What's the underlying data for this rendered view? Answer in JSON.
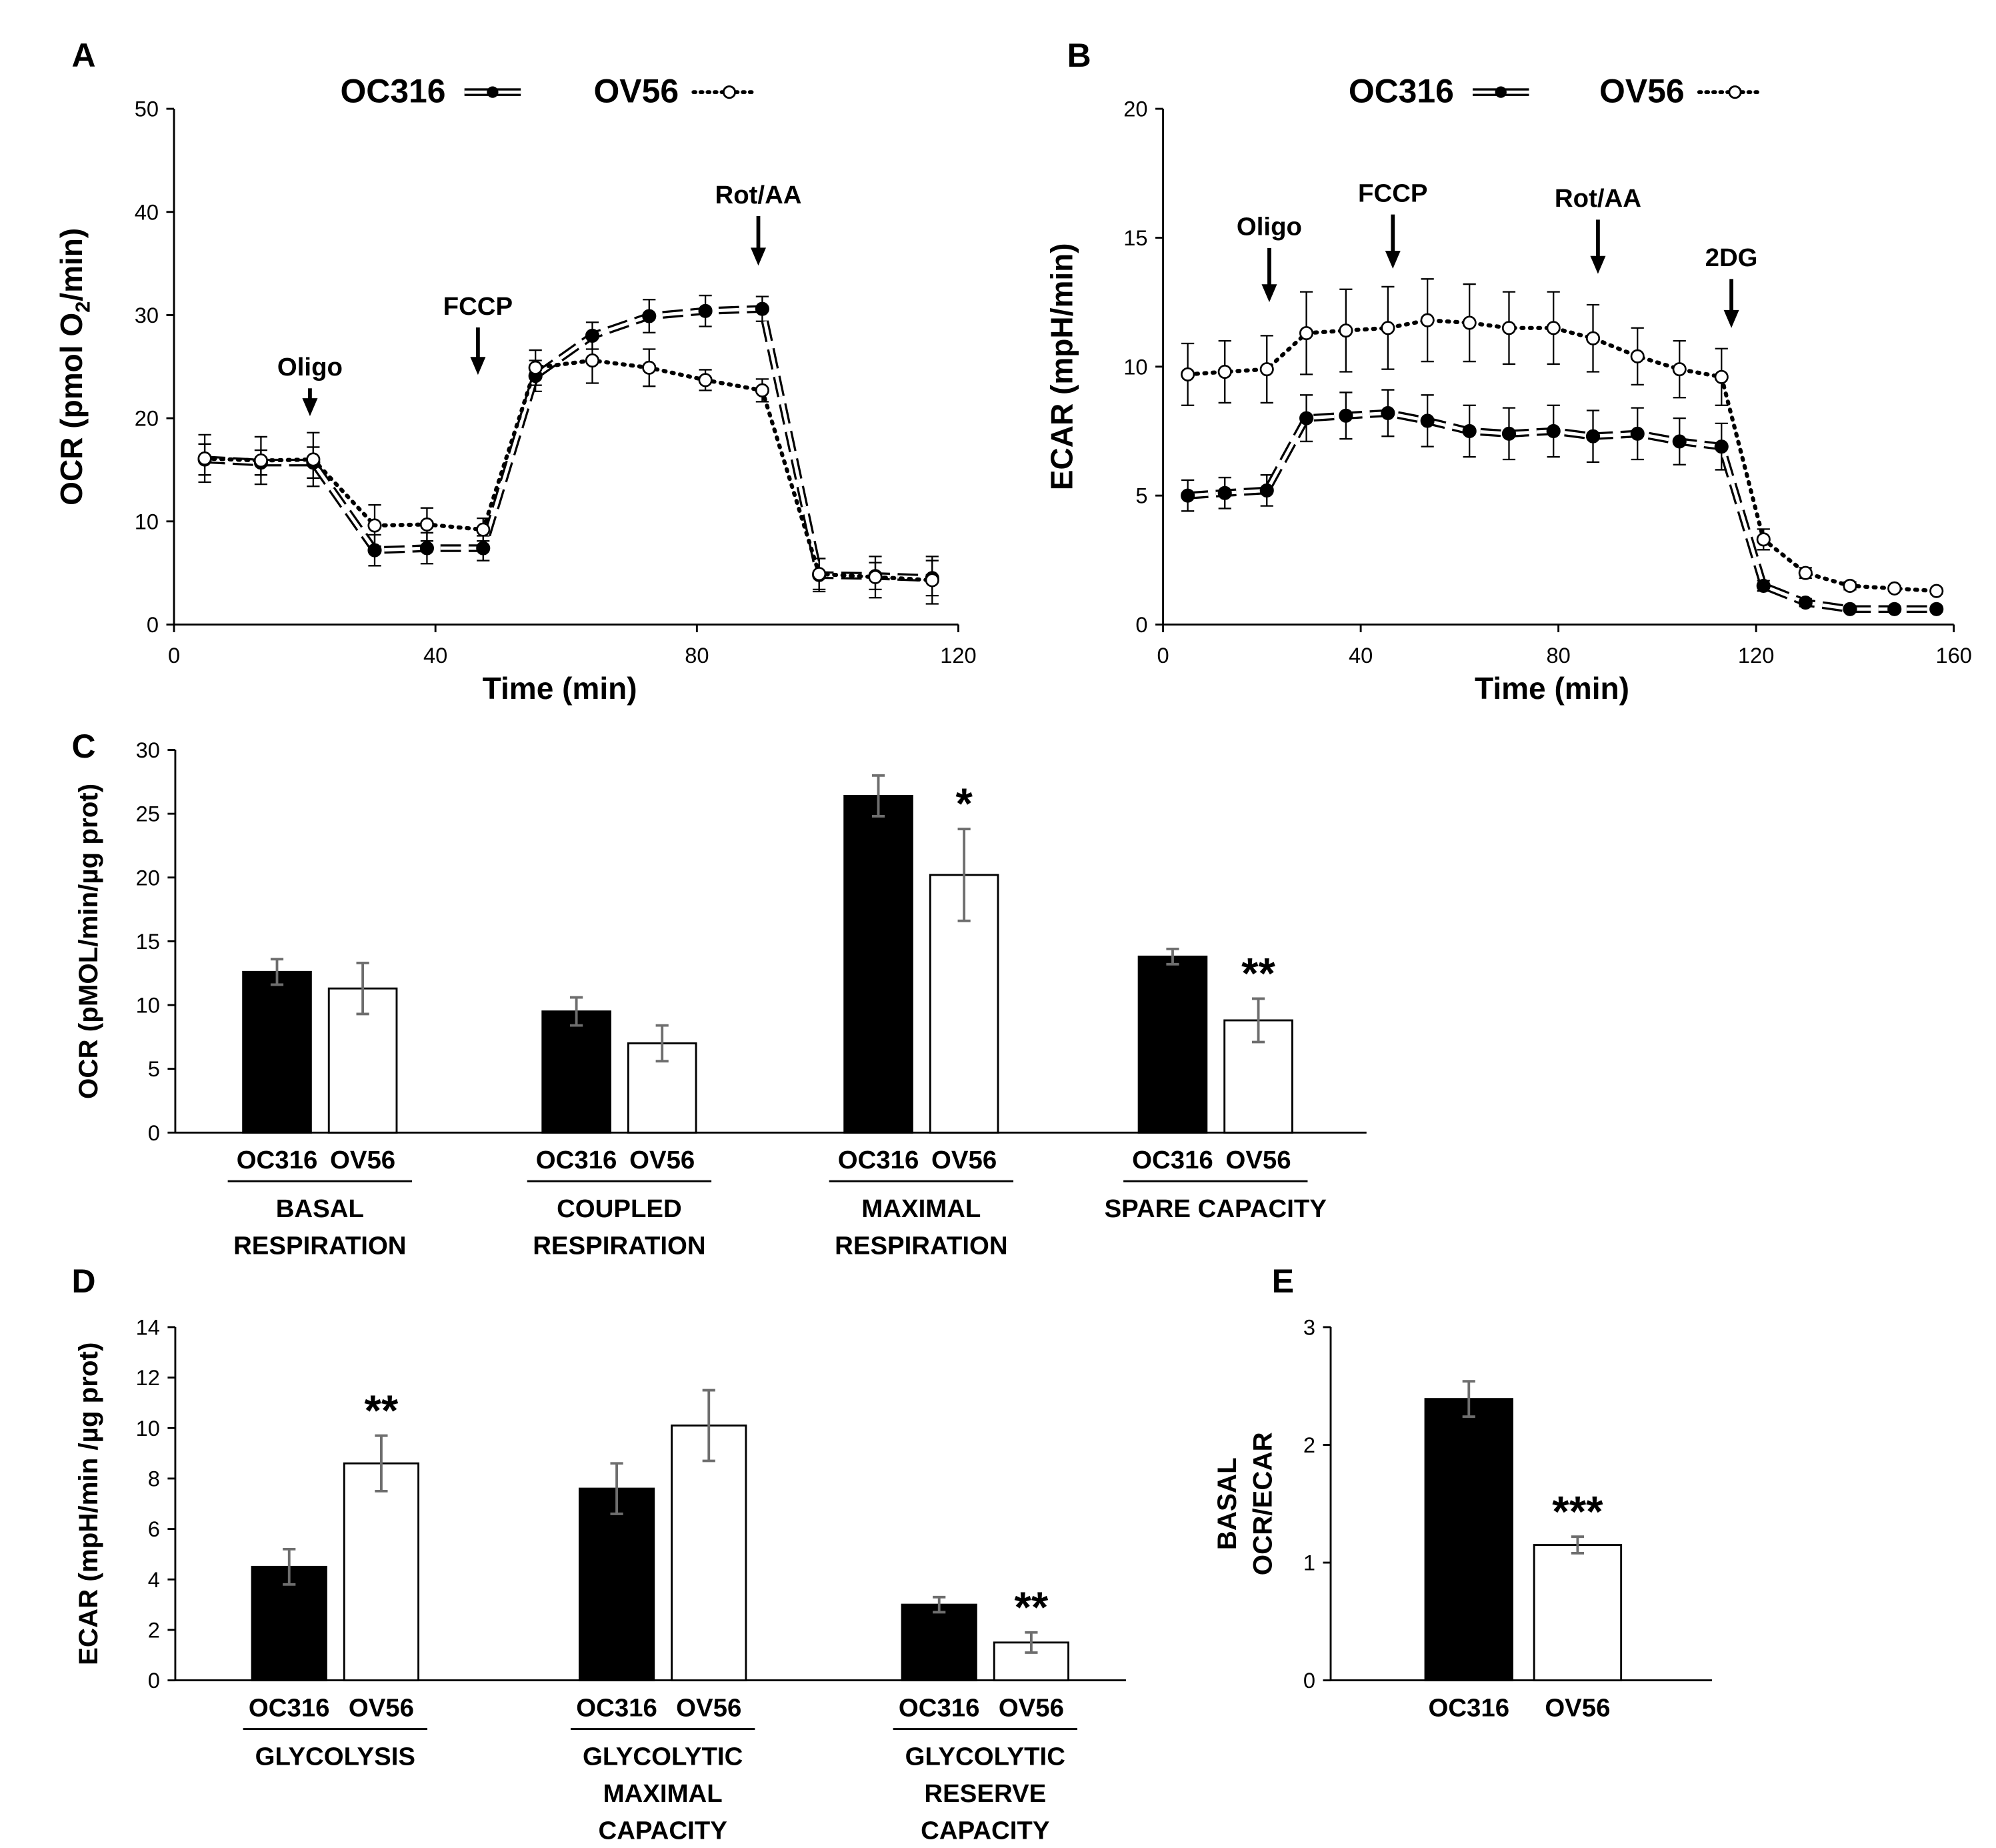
{
  "colors": {
    "ink": "#000000",
    "paper": "#ffffff",
    "errbar": "#6e6e6e"
  },
  "chart_data": [
    {
      "id": "A",
      "type": "line",
      "panel_label": "A",
      "legend": [
        "OC316",
        "OV56"
      ],
      "xlabel": "Time (min)",
      "ylabel_main": "OCR  (pmol O",
      "ylabel_sub": "2",
      "ylabel_end": "/min)",
      "xlim": [
        0,
        120
      ],
      "ylim": [
        0,
        50
      ],
      "xticks": [
        0,
        40,
        80,
        120
      ],
      "xtick_labels": [
        "0",
        "40",
        "80",
        "120"
      ],
      "yticks": [
        0,
        10,
        20,
        30,
        40,
        50
      ],
      "ytick_labels": [
        "0",
        "10",
        "20",
        "30",
        "40",
        "50"
      ],
      "series": [
        {
          "name": "OC316",
          "style": "dashed-filled",
          "x": [
            4.7,
            13.3,
            21.3,
            30.7,
            38.7,
            47.3,
            55.3,
            64.0,
            72.7,
            81.3,
            90.0,
            98.7,
            107.3,
            116.0
          ],
          "y": [
            16.0,
            15.7,
            15.7,
            7.2,
            7.4,
            7.4,
            24.1,
            28.0,
            29.9,
            30.4,
            30.6,
            4.8,
            4.7,
            4.5
          ],
          "err": [
            1.5,
            1.2,
            1.5,
            1.5,
            1.5,
            1.2,
            1.5,
            1.3,
            1.6,
            1.5,
            1.2,
            1.6,
            1.3,
            1.7
          ]
        },
        {
          "name": "OV56",
          "style": "dotted-open",
          "x": [
            4.7,
            13.3,
            21.3,
            30.7,
            38.7,
            47.3,
            55.3,
            64.0,
            72.7,
            81.3,
            90.0,
            98.7,
            107.3,
            116.0
          ],
          "y": [
            16.1,
            15.9,
            16.0,
            9.6,
            9.7,
            9.2,
            24.9,
            25.6,
            24.9,
            23.7,
            22.7,
            4.9,
            4.6,
            4.3
          ],
          "err": [
            2.3,
            2.3,
            2.6,
            2.0,
            1.6,
            1.1,
            1.7,
            2.2,
            1.8,
            1.0,
            1.1,
            1.5,
            2.0,
            2.3
          ]
        }
      ],
      "annotations": [
        {
          "label": "Oligo",
          "x": 20.8,
          "y_top": 22.9,
          "y_bottom": 20.2
        },
        {
          "label": "FCCP",
          "x": 46.5,
          "y_top": 28.8,
          "y_bottom": 24.2
        },
        {
          "label": "Rot/AA",
          "x": 89.4,
          "y_top": 39.6,
          "y_bottom": 34.8
        }
      ]
    },
    {
      "id": "B",
      "type": "line",
      "panel_label": "B",
      "legend": [
        "OC316",
        "OV56"
      ],
      "xlabel": "Time (min)",
      "ylabel": "ECAR (mpH/min)",
      "xlim": [
        0,
        160
      ],
      "ylim": [
        0,
        20
      ],
      "xticks": [
        0,
        40,
        80,
        120,
        160
      ],
      "xtick_labels": [
        "0",
        "40",
        "80",
        "120",
        "160"
      ],
      "yticks": [
        0,
        5,
        10,
        15,
        20
      ],
      "ytick_labels": [
        "0",
        "5",
        "10",
        "15",
        "20"
      ],
      "series": [
        {
          "name": "OC316",
          "style": "dashed-filled",
          "x": [
            5.0,
            12.5,
            21.0,
            29.0,
            37.0,
            45.5,
            53.5,
            62.0,
            70.0,
            79.0,
            87.0,
            96.0,
            104.5,
            113.0,
            121.5,
            130.0,
            139.0,
            148.0,
            156.5
          ],
          "y": [
            5.0,
            5.1,
            5.2,
            8.0,
            8.1,
            8.2,
            7.9,
            7.5,
            7.4,
            7.5,
            7.3,
            7.4,
            7.1,
            6.9,
            1.5,
            0.85,
            0.6,
            0.6,
            0.6
          ],
          "err": [
            0.6,
            0.6,
            0.6,
            0.9,
            0.9,
            0.9,
            1.0,
            1.0,
            1.0,
            1.0,
            1.0,
            1.0,
            0.9,
            0.9,
            0.2,
            0.15,
            0.1,
            0.1,
            0.1
          ]
        },
        {
          "name": "OV56",
          "style": "dotted-open",
          "x": [
            5.0,
            12.5,
            21.0,
            29.0,
            37.0,
            45.5,
            53.5,
            62.0,
            70.0,
            79.0,
            87.0,
            96.0,
            104.5,
            113.0,
            121.5,
            130.0,
            139.0,
            148.0,
            156.5
          ],
          "y": [
            9.7,
            9.8,
            9.9,
            11.3,
            11.4,
            11.5,
            11.8,
            11.7,
            11.5,
            11.5,
            11.1,
            10.4,
            9.9,
            9.6,
            3.3,
            2.0,
            1.5,
            1.4,
            1.3
          ],
          "err": [
            1.2,
            1.2,
            1.3,
            1.6,
            1.6,
            1.6,
            1.6,
            1.5,
            1.4,
            1.4,
            1.3,
            1.1,
            1.1,
            1.1,
            0.4,
            0.2,
            0.15,
            0.1,
            0.1
          ]
        }
      ],
      "annotations": [
        {
          "label": "Oligo",
          "x": 21.5,
          "y_top": 14.6,
          "y_bottom": 12.5
        },
        {
          "label": "FCCP",
          "x": 46.5,
          "y_top": 15.9,
          "y_bottom": 13.8
        },
        {
          "label": "Rot/AA",
          "x": 88.0,
          "y_top": 15.7,
          "y_bottom": 13.6
        },
        {
          "label": "2DG",
          "x": 115.0,
          "y_top": 13.4,
          "y_bottom": 11.5
        }
      ]
    },
    {
      "id": "C",
      "type": "bar",
      "panel_label": "C",
      "ylabel": "OCR (pMOL/min/µg prot)",
      "ylim": [
        0,
        30
      ],
      "yticks": [
        0,
        5,
        10,
        15,
        20,
        25,
        30
      ],
      "ytick_labels": [
        "0",
        "5",
        "10",
        "15",
        "20",
        "25",
        "30"
      ],
      "groups": [
        {
          "label_lines": [
            "BASAL",
            "RESPIRATION"
          ],
          "bar_labels": [
            "OC316",
            "OV56"
          ],
          "values": [
            12.6,
            11.3
          ],
          "err": [
            1.0,
            2.0
          ],
          "sig": ""
        },
        {
          "label_lines": [
            "COUPLED",
            "RESPIRATION"
          ],
          "bar_labels": [
            "OC316",
            "OV56"
          ],
          "values": [
            9.5,
            7.0
          ],
          "err": [
            1.1,
            1.4
          ],
          "sig": ""
        },
        {
          "label_lines": [
            "MAXIMAL",
            "RESPIRATION"
          ],
          "bar_labels": [
            "OC316",
            "OV56"
          ],
          "values": [
            26.4,
            20.2
          ],
          "err": [
            1.6,
            3.6
          ],
          "sig": "*"
        },
        {
          "label_lines": [
            "SPARE CAPACITY"
          ],
          "bar_labels": [
            "OC316",
            "OV56"
          ],
          "values": [
            13.8,
            8.8
          ],
          "err": [
            0.6,
            1.7
          ],
          "sig": "**"
        }
      ]
    },
    {
      "id": "D",
      "type": "bar",
      "panel_label": "D",
      "ylabel": "ECAR (mpH/min /µg prot)",
      "ylim": [
        0,
        14
      ],
      "yticks": [
        0,
        2,
        4,
        6,
        8,
        10,
        12,
        14
      ],
      "ytick_labels": [
        "0",
        "2",
        "4",
        "6",
        "8",
        "10",
        "12",
        "14"
      ],
      "groups": [
        {
          "label_lines": [
            "GLYCOLYSIS"
          ],
          "bar_labels": [
            "OC316",
            "OV56"
          ],
          "values": [
            4.5,
            8.6
          ],
          "err": [
            0.7,
            1.1
          ],
          "sig": "**"
        },
        {
          "label_lines": [
            "GLYCOLYTIC",
            "MAXIMAL",
            "CAPACITY"
          ],
          "bar_labels": [
            "OC316",
            "OV56"
          ],
          "values": [
            7.6,
            10.1
          ],
          "err": [
            1.0,
            1.4
          ],
          "sig": ""
        },
        {
          "label_lines": [
            "GLYCOLYTIC",
            "RESERVE",
            "CAPACITY"
          ],
          "bar_labels": [
            "OC316",
            "OV56"
          ],
          "values": [
            3.0,
            1.5
          ],
          "err": [
            0.3,
            0.4
          ],
          "sig": "**"
        }
      ]
    },
    {
      "id": "E",
      "type": "bar",
      "panel_label": "E",
      "ylabel_lines": [
        "BASAL",
        "OCR/ECAR"
      ],
      "ylim": [
        0,
        3
      ],
      "yticks": [
        0,
        1,
        2,
        3
      ],
      "ytick_labels": [
        "0",
        "1",
        "2",
        "3"
      ],
      "categories": [
        "OC316",
        "OV56"
      ],
      "values": [
        2.39,
        1.15
      ],
      "err": [
        0.15,
        0.07
      ],
      "sig": [
        "",
        "***"
      ]
    }
  ]
}
